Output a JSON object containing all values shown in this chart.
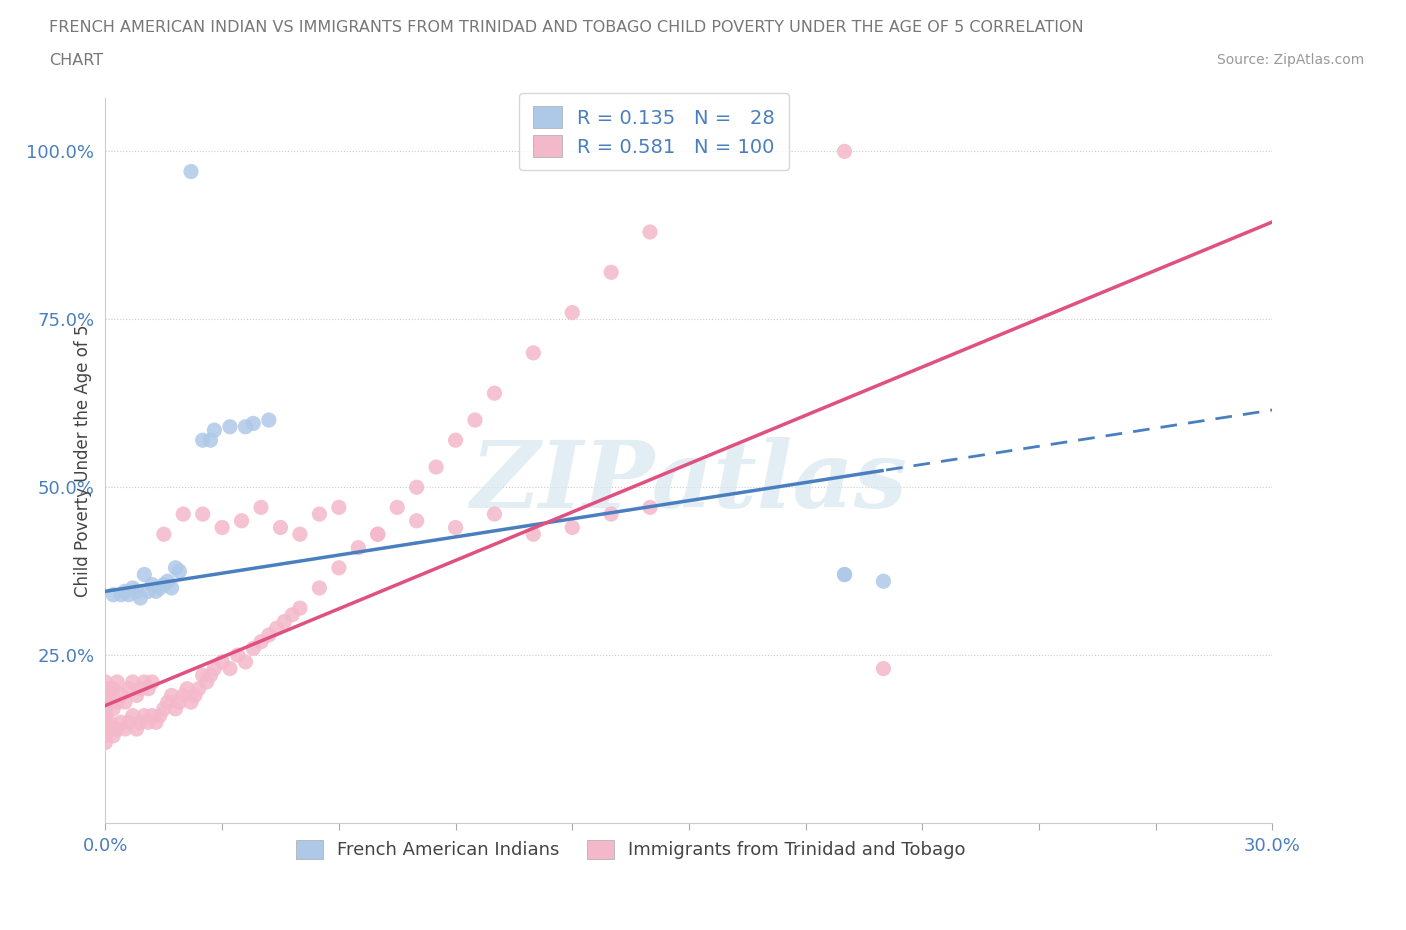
{
  "title_line1": "FRENCH AMERICAN INDIAN VS IMMIGRANTS FROM TRINIDAD AND TOBAGO CHILD POVERTY UNDER THE AGE OF 5 CORRELATION",
  "title_line2": "CHART",
  "source": "Source: ZipAtlas.com",
  "ylabel": "Child Poverty Under the Age of 5",
  "xmin": 0.0,
  "xmax": 0.3,
  "ymin": 0.0,
  "ymax": 1.08,
  "blue_R": "0.135",
  "blue_N": "28",
  "pink_R": "0.581",
  "pink_N": "100",
  "blue_color": "#aec8e8",
  "pink_color": "#f4b8cb",
  "blue_line_color": "#4a7fbf",
  "pink_line_color": "#e05080",
  "watermark_text": "ZIPatlas",
  "legend_color": "#4a7fbf",
  "title_color": "#777777",
  "source_color": "#999999",
  "blue_x": [
    0.002,
    0.004,
    0.005,
    0.006,
    0.007,
    0.008,
    0.009,
    0.01,
    0.011,
    0.012,
    0.013,
    0.014,
    0.015,
    0.016,
    0.017,
    0.018,
    0.019,
    0.025,
    0.027,
    0.028,
    0.032,
    0.036,
    0.038,
    0.042,
    0.19,
    0.19,
    0.2,
    0.022
  ],
  "blue_y": [
    0.34,
    0.34,
    0.345,
    0.34,
    0.35,
    0.345,
    0.335,
    0.37,
    0.345,
    0.355,
    0.345,
    0.35,
    0.355,
    0.36,
    0.35,
    0.38,
    0.375,
    0.57,
    0.57,
    0.585,
    0.59,
    0.59,
    0.595,
    0.6,
    0.37,
    0.37,
    0.36,
    0.97
  ],
  "pink_x": [
    0.0,
    0.0,
    0.0,
    0.0,
    0.0,
    0.0,
    0.0,
    0.0,
    0.0,
    0.0,
    0.001,
    0.001,
    0.001,
    0.001,
    0.001,
    0.002,
    0.002,
    0.002,
    0.003,
    0.003,
    0.003,
    0.004,
    0.004,
    0.005,
    0.005,
    0.006,
    0.006,
    0.007,
    0.007,
    0.008,
    0.008,
    0.009,
    0.009,
    0.01,
    0.01,
    0.011,
    0.011,
    0.012,
    0.012,
    0.013,
    0.014,
    0.015,
    0.016,
    0.017,
    0.018,
    0.019,
    0.02,
    0.021,
    0.022,
    0.023,
    0.024,
    0.025,
    0.026,
    0.027,
    0.028,
    0.03,
    0.032,
    0.034,
    0.036,
    0.038,
    0.04,
    0.042,
    0.044,
    0.046,
    0.048,
    0.05,
    0.055,
    0.06,
    0.065,
    0.07,
    0.075,
    0.08,
    0.085,
    0.09,
    0.095,
    0.1,
    0.11,
    0.12,
    0.13,
    0.14,
    0.015,
    0.02,
    0.025,
    0.03,
    0.035,
    0.04,
    0.045,
    0.05,
    0.055,
    0.06,
    0.07,
    0.08,
    0.09,
    0.1,
    0.11,
    0.12,
    0.13,
    0.14,
    0.19,
    0.2
  ],
  "pink_y": [
    0.14,
    0.15,
    0.16,
    0.17,
    0.18,
    0.19,
    0.2,
    0.13,
    0.21,
    0.12,
    0.14,
    0.15,
    0.18,
    0.19,
    0.2,
    0.13,
    0.17,
    0.2,
    0.14,
    0.18,
    0.21,
    0.15,
    0.19,
    0.14,
    0.18,
    0.15,
    0.2,
    0.16,
    0.21,
    0.14,
    0.19,
    0.15,
    0.2,
    0.16,
    0.21,
    0.15,
    0.2,
    0.16,
    0.21,
    0.15,
    0.16,
    0.17,
    0.18,
    0.19,
    0.17,
    0.18,
    0.19,
    0.2,
    0.18,
    0.19,
    0.2,
    0.22,
    0.21,
    0.22,
    0.23,
    0.24,
    0.23,
    0.25,
    0.24,
    0.26,
    0.27,
    0.28,
    0.29,
    0.3,
    0.31,
    0.32,
    0.35,
    0.38,
    0.41,
    0.43,
    0.47,
    0.5,
    0.53,
    0.57,
    0.6,
    0.64,
    0.7,
    0.76,
    0.82,
    0.88,
    0.43,
    0.46,
    0.46,
    0.44,
    0.45,
    0.47,
    0.44,
    0.43,
    0.46,
    0.47,
    0.43,
    0.45,
    0.44,
    0.46,
    0.43,
    0.44,
    0.46,
    0.47,
    1.0,
    0.23
  ]
}
